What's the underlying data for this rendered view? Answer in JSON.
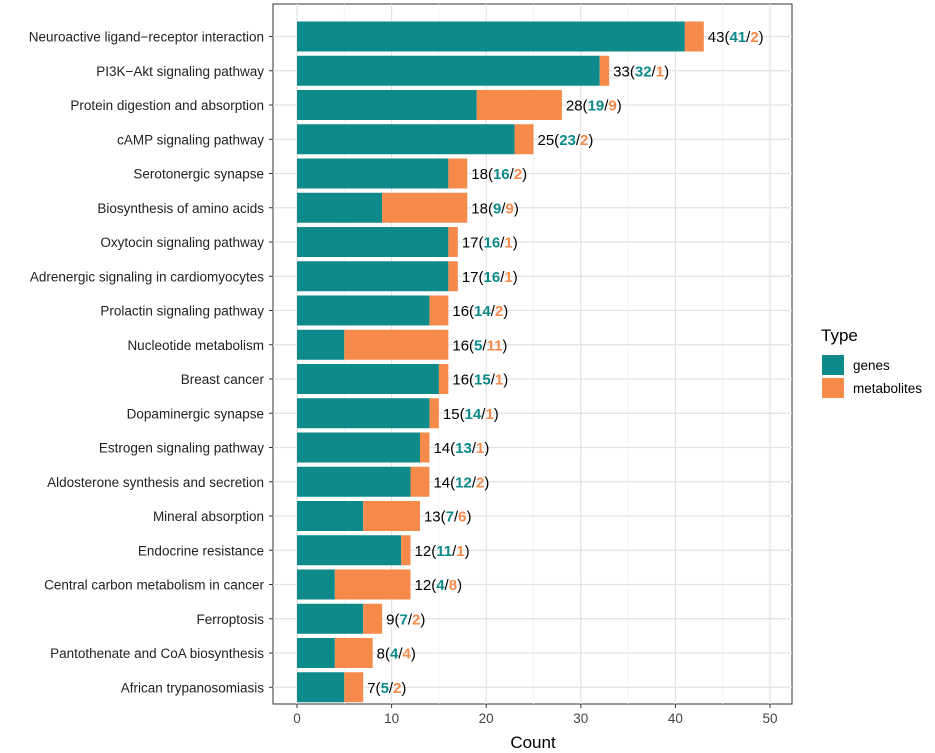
{
  "chart_data": {
    "type": "bar",
    "stacked": true,
    "orientation": "horizontal",
    "title": "",
    "xlabel": "Count",
    "ylabel": "",
    "xlim": [
      0,
      50
    ],
    "xticks": [
      0,
      10,
      20,
      30,
      40,
      50
    ],
    "grid": true,
    "legend": {
      "title": "Type",
      "position": "right",
      "entries": [
        "genes",
        "metabolites"
      ]
    },
    "colors": {
      "genes": "#0e8a8a",
      "metabolites": "#f58a4b"
    },
    "categories": [
      "Neuroactive ligand−receptor interaction",
      "PI3K−Akt signaling pathway",
      "Protein digestion and absorption",
      "cAMP signaling pathway",
      "Serotonergic synapse",
      "Biosynthesis of amino acids",
      "Oxytocin signaling pathway",
      "Adrenergic signaling in cardiomyocytes",
      "Prolactin signaling pathway",
      "Nucleotide metabolism",
      "Breast cancer",
      "Dopaminergic synapse",
      "Estrogen signaling pathway",
      "Aldosterone synthesis and secretion",
      "Mineral absorption",
      "Endocrine resistance",
      "Central carbon metabolism in cancer",
      "Ferroptosis",
      "Pantothenate and CoA biosynthesis",
      "African trypanosomiasis"
    ],
    "series": [
      {
        "name": "genes",
        "values": [
          41,
          32,
          19,
          23,
          16,
          9,
          16,
          16,
          14,
          5,
          15,
          14,
          13,
          12,
          7,
          11,
          4,
          7,
          4,
          5
        ]
      },
      {
        "name": "metabolites",
        "values": [
          2,
          1,
          9,
          2,
          2,
          9,
          1,
          1,
          2,
          11,
          1,
          1,
          1,
          2,
          6,
          1,
          8,
          2,
          4,
          2
        ]
      }
    ],
    "totals": [
      43,
      33,
      28,
      25,
      18,
      18,
      17,
      17,
      16,
      16,
      16,
      15,
      14,
      14,
      13,
      12,
      12,
      9,
      8,
      7
    ]
  }
}
